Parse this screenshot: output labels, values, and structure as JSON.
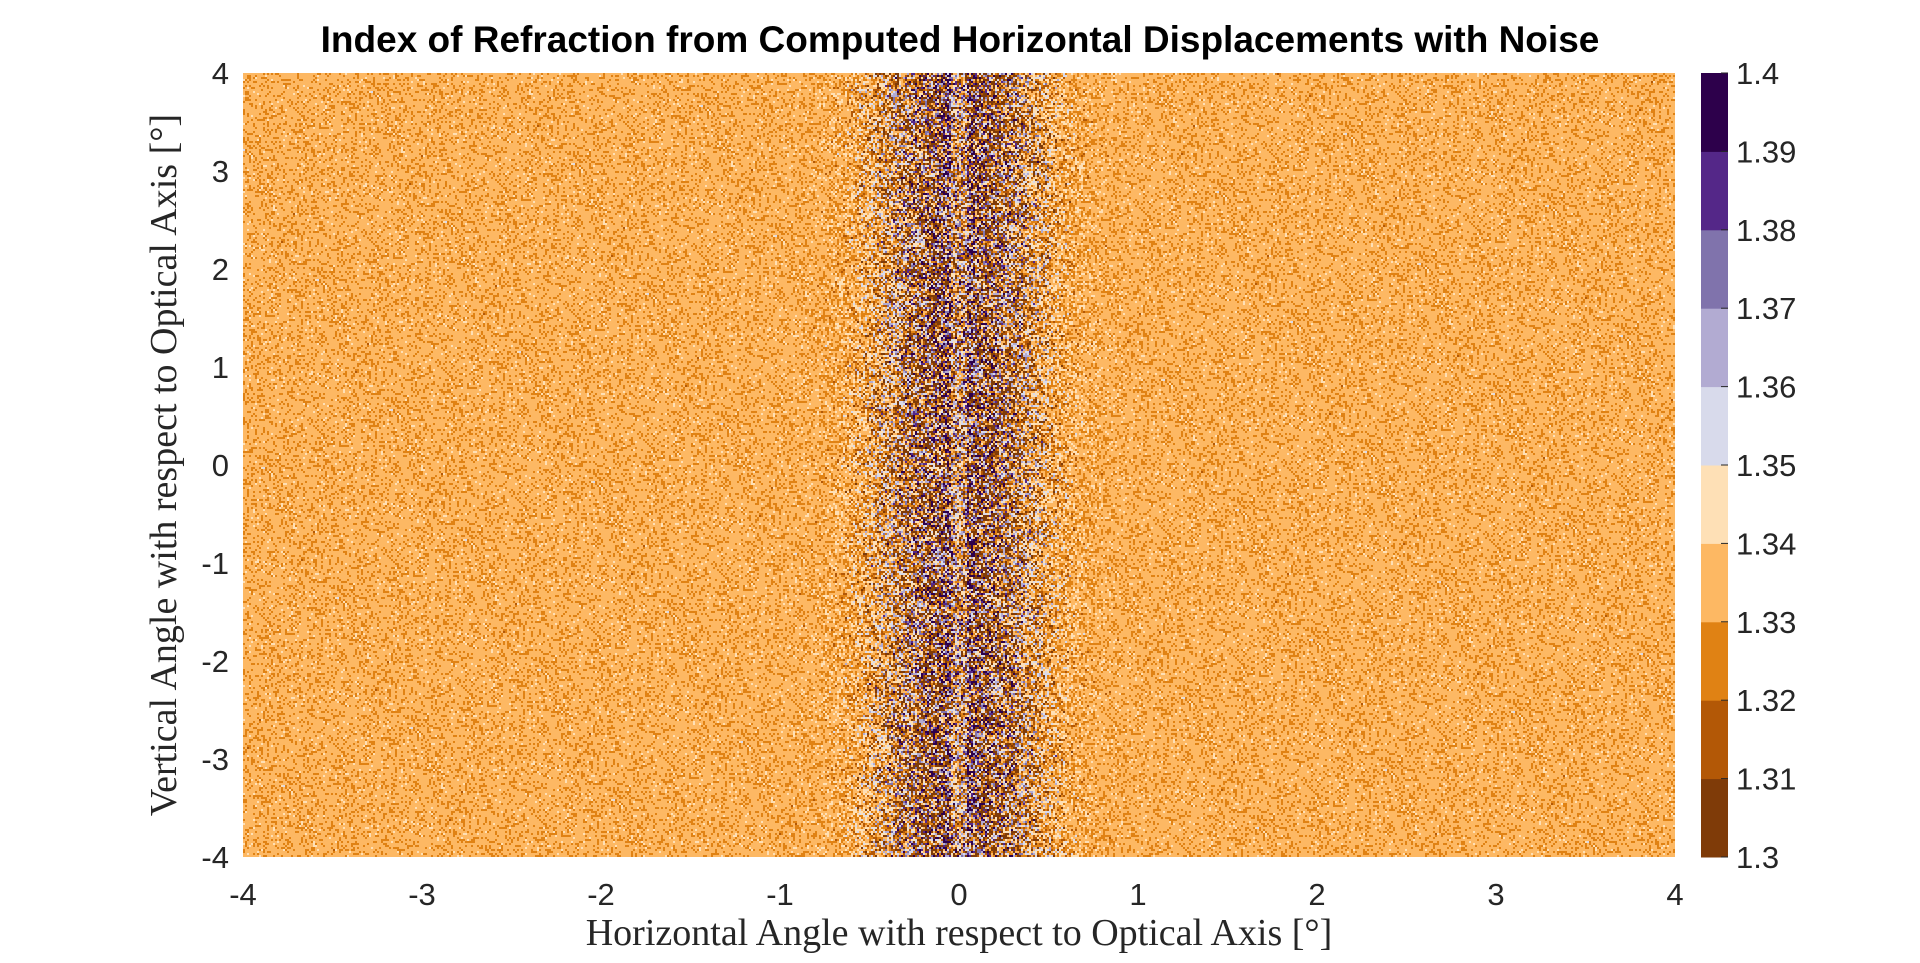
{
  "chart_data": {
    "type": "heatmap",
    "title": "Index of Refraction from Computed Horizontal Displacements with Noise",
    "xlabel": "Horizontal Angle with respect to Optical Axis [°]",
    "ylabel": "Vertical Angle with respect to Optical Axis [°]",
    "xlim": [
      -4,
      4
    ],
    "ylim": [
      -4,
      4
    ],
    "x_ticks": [
      "-4",
      "-3",
      "-2",
      "-1",
      "0",
      "1",
      "2",
      "3",
      "4"
    ],
    "y_ticks": [
      "4",
      "3",
      "2",
      "1",
      "0",
      "-1",
      "-2",
      "-3",
      "-4"
    ],
    "colorbar": {
      "range": [
        1.3,
        1.4
      ],
      "tick_labels": [
        "1.4",
        "1.39",
        "1.38",
        "1.37",
        "1.36",
        "1.35",
        "1.34",
        "1.33",
        "1.32",
        "1.31",
        "1.3"
      ],
      "levels": [
        {
          "from": 1.3,
          "to": 1.31,
          "color": "#7f3b08"
        },
        {
          "from": 1.31,
          "to": 1.32,
          "color": "#b35806"
        },
        {
          "from": 1.32,
          "to": 1.33,
          "color": "#e08214"
        },
        {
          "from": 1.33,
          "to": 1.34,
          "color": "#fdb863"
        },
        {
          "from": 1.34,
          "to": 1.35,
          "color": "#fee0b6"
        },
        {
          "from": 1.35,
          "to": 1.36,
          "color": "#d8daeb"
        },
        {
          "from": 1.36,
          "to": 1.37,
          "color": "#b2abd2"
        },
        {
          "from": 1.37,
          "to": 1.38,
          "color": "#8073ac"
        },
        {
          "from": 1.38,
          "to": 1.39,
          "color": "#542788"
        },
        {
          "from": 1.39,
          "to": 1.4,
          "color": "#2d004b"
        }
      ]
    },
    "field_description": {
      "background_index": 1.333,
      "peak_index_at_x0": 1.4,
      "peak_halfwidth_deg": 0.5,
      "noise": true
    }
  }
}
